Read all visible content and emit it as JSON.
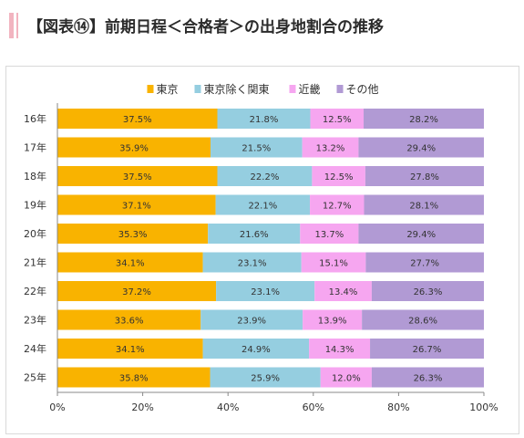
{
  "title": "【図表⑭】前期日程＜合格者＞の出身地割合の推移",
  "colors": {
    "tokyo": "#f9b300",
    "kanto": "#95cee0",
    "kinki": "#f6a6f0",
    "other": "#b19ad4"
  },
  "chart_data": {
    "type": "bar",
    "orientation": "horizontal",
    "stacked": "percent",
    "categories": [
      "16年",
      "17年",
      "18年",
      "19年",
      "20年",
      "21年",
      "22年",
      "23年",
      "24年",
      "25年"
    ],
    "series": [
      {
        "name": "東京",
        "color": "#f9b300",
        "values": [
          37.5,
          35.9,
          37.5,
          37.1,
          35.3,
          34.1,
          37.2,
          33.6,
          34.1,
          35.8
        ]
      },
      {
        "name": "東京除く関東",
        "color": "#95cee0",
        "values": [
          21.8,
          21.5,
          22.2,
          22.1,
          21.6,
          23.1,
          23.1,
          23.9,
          24.9,
          25.9
        ]
      },
      {
        "name": "近畿",
        "color": "#f6a6f0",
        "values": [
          12.5,
          13.2,
          12.5,
          12.7,
          13.7,
          15.1,
          13.4,
          13.9,
          14.3,
          12.0
        ]
      },
      {
        "name": "その他",
        "color": "#b19ad4",
        "values": [
          28.2,
          29.4,
          27.8,
          28.1,
          29.4,
          27.7,
          26.3,
          28.6,
          26.7,
          26.3
        ]
      }
    ],
    "x_ticks": [
      "0%",
      "20%",
      "40%",
      "60%",
      "80%",
      "100%"
    ],
    "xlim": [
      0,
      100
    ],
    "legend_position": "top",
    "grid": false
  }
}
